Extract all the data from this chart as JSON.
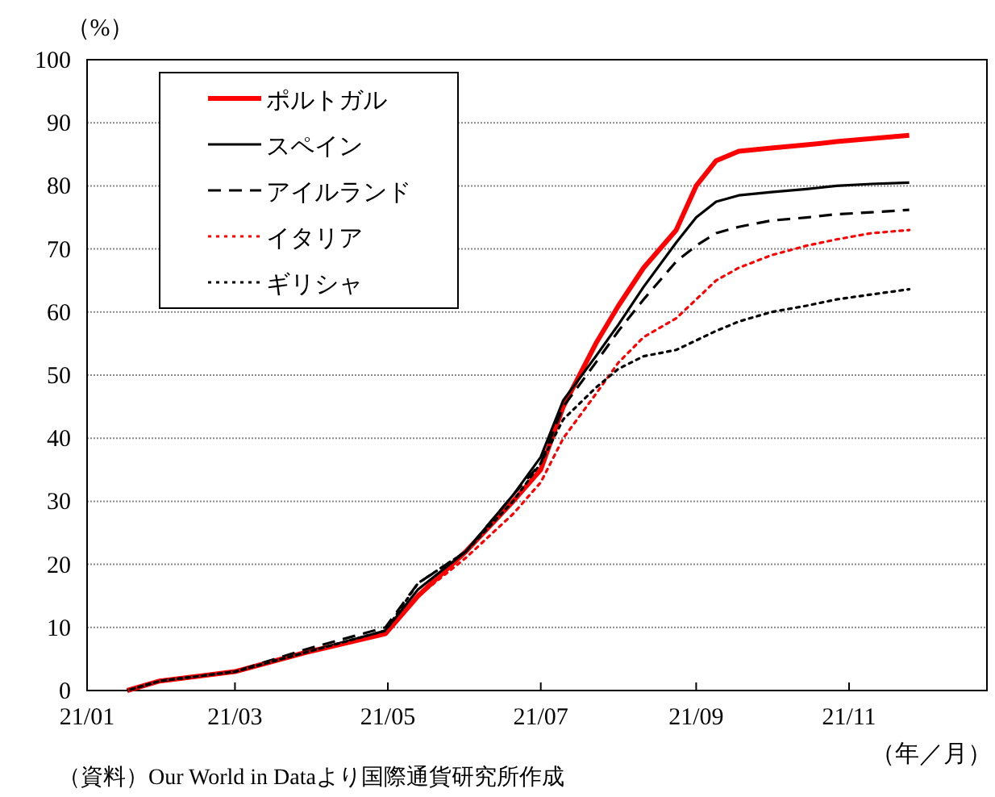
{
  "chart_data": {
    "type": "line",
    "ylabel": "（%）",
    "xlabel": "（年／月）",
    "annotations": [
      "（資料）Our World in Dataより国際通貨研究所作成"
    ],
    "x": [
      "--01-17",
      "--01-30",
      "--03-01",
      "--03-29",
      "--04-30",
      "--05-13",
      "--06-01",
      "--06-20",
      "--07-01",
      "--07-10",
      "--07-23",
      "--08-01",
      "--08-11",
      "--08-24",
      "--09-01",
      "--09-09",
      "--09-18",
      "--10-01",
      "--10-15",
      "--10-27",
      "--11-10",
      "--11-25"
    ],
    "series": [
      {
        "name": "ポルトガル",
        "color": "#ff0000",
        "line_style": "solid",
        "values": [
          0,
          1.5,
          3,
          6,
          9,
          15,
          22,
          30,
          35,
          45,
          55,
          61,
          67,
          73,
          80,
          84,
          85.5,
          86,
          86.5,
          87,
          87.5,
          88
        ]
      },
      {
        "name": "スペイン",
        "color": "#000000",
        "line_style": "solid",
        "values": [
          0,
          1.5,
          3,
          6,
          9.5,
          16,
          22,
          31,
          37,
          46,
          53,
          58,
          64,
          71,
          75,
          77.5,
          78.5,
          79,
          79.5,
          80,
          80.3,
          80.5
        ]
      },
      {
        "name": "アイルランド",
        "color": "#000000",
        "line_style": "dashed",
        "values": [
          0,
          1.5,
          3,
          6.5,
          10,
          17,
          22,
          31,
          36,
          45,
          52,
          57,
          62,
          68,
          70.5,
          72.5,
          73.5,
          74.5,
          75,
          75.5,
          75.8,
          76.2
        ]
      },
      {
        "name": "イタリア",
        "color": "#ff0000",
        "line_style": "dotted",
        "values": [
          0,
          1.5,
          3,
          6,
          9,
          15,
          21,
          28,
          33,
          40,
          47,
          52,
          56,
          59,
          62,
          65,
          67,
          69,
          70.5,
          71.5,
          72.5,
          73
        ]
      },
      {
        "name": "ギリシャ",
        "color": "#000000",
        "line_style": "dotted",
        "values": [
          0,
          1.5,
          3,
          6,
          9.5,
          17,
          22,
          30,
          36,
          43,
          48,
          51,
          53,
          54,
          55.5,
          57,
          58.5,
          60,
          61,
          62,
          62.8,
          63.6
        ]
      }
    ],
    "xlim": [
      "--01-01",
      "--12-26"
    ],
    "xticks": [
      {
        "value": "--01-01",
        "label": "21/01"
      },
      {
        "value": "--03-01",
        "label": "21/03"
      },
      {
        "value": "--05-01",
        "label": "21/05"
      },
      {
        "value": "--07-01",
        "label": "21/07"
      },
      {
        "value": "--09-01",
        "label": "21/09"
      },
      {
        "value": "--11-01",
        "label": "21/11"
      }
    ],
    "ylim": [
      0,
      100
    ],
    "yticks": [
      0,
      10,
      20,
      30,
      40,
      50,
      60,
      70,
      80,
      90,
      100
    ],
    "grid": "y",
    "legend": "top left",
    "marker": "none"
  }
}
